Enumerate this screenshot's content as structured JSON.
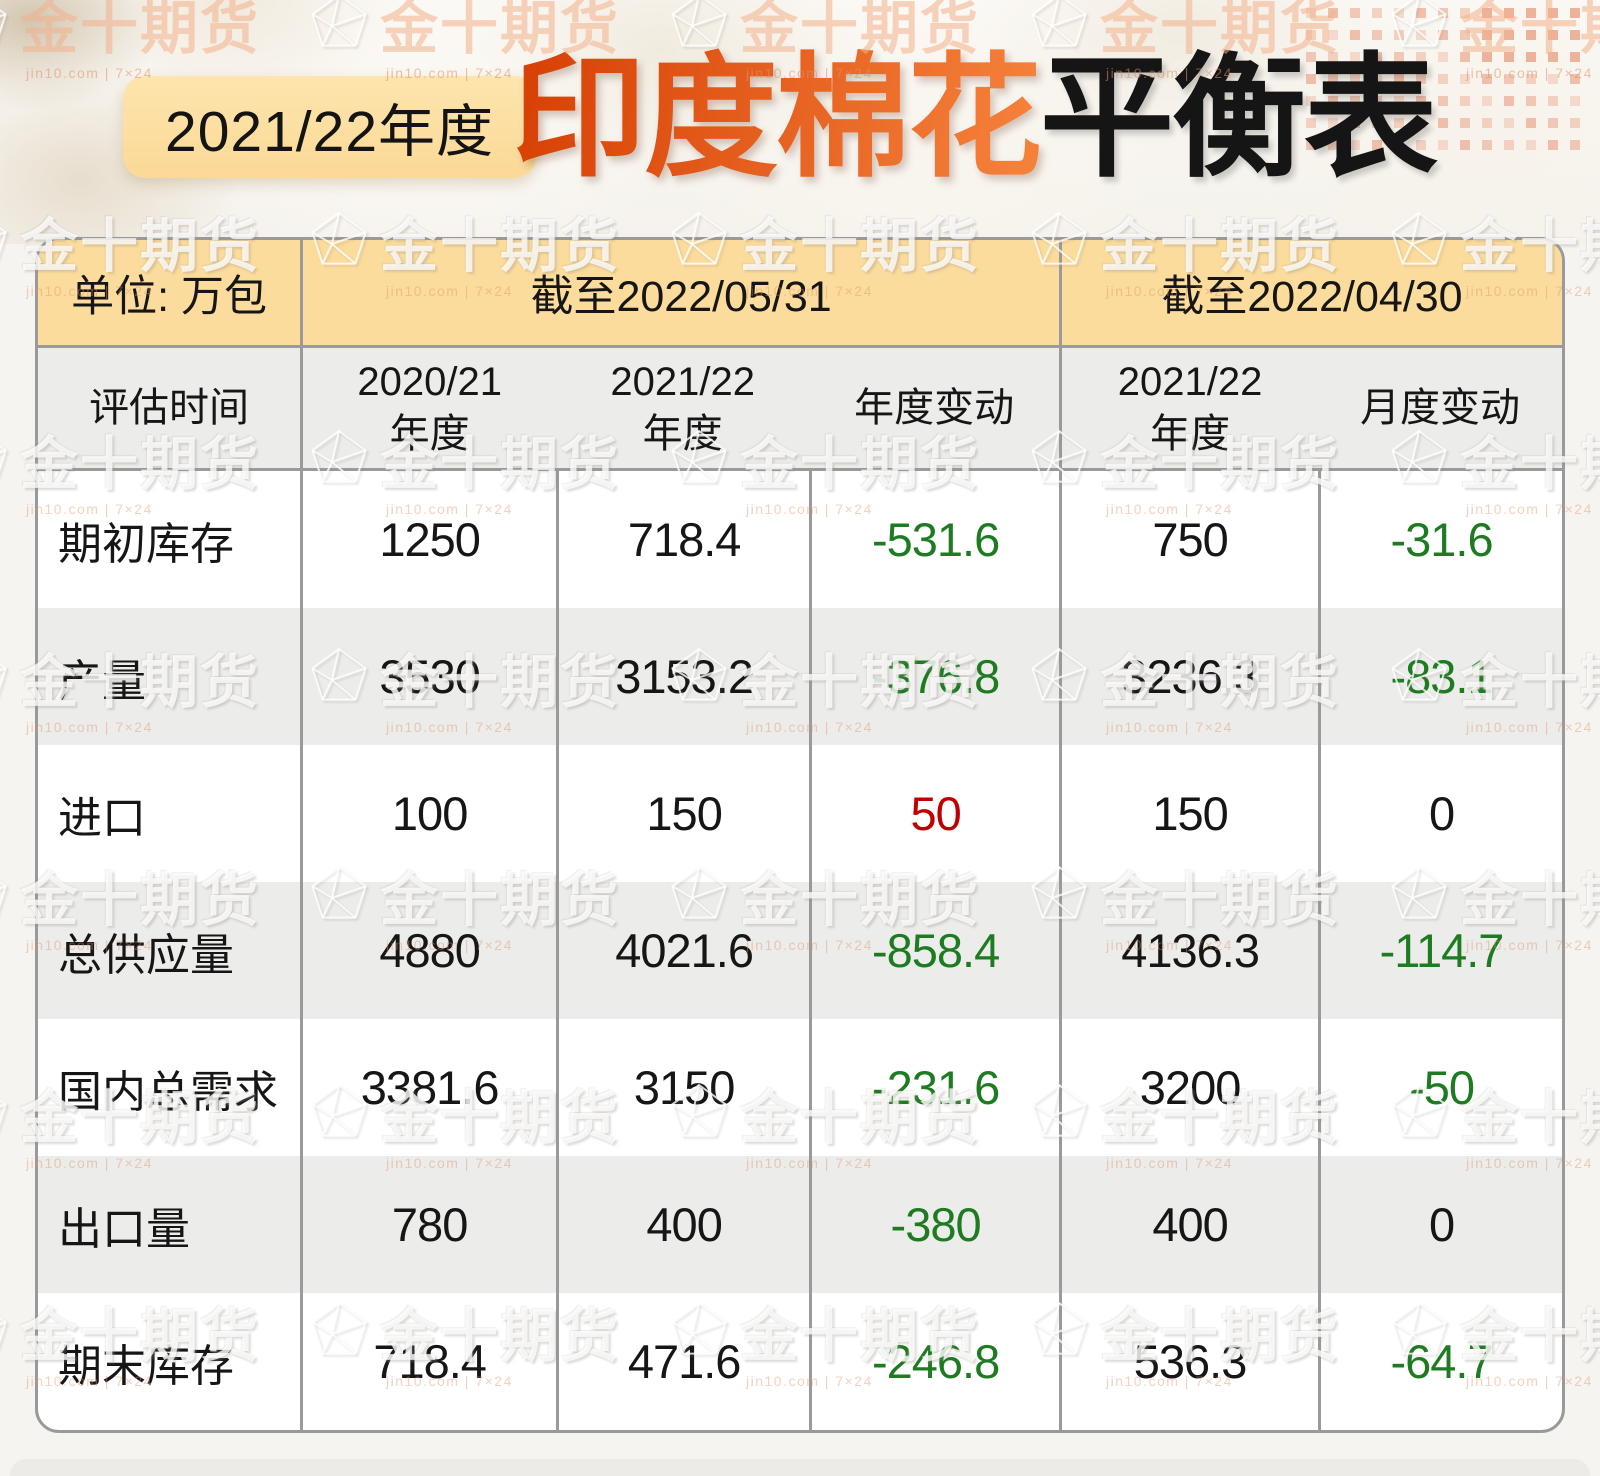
{
  "header": {
    "badge": "2021/22年度",
    "title_orange": "印度棉花",
    "title_black": "平衡表"
  },
  "table": {
    "unit_label": "单位: 万包",
    "group_headers": [
      "截至2022/05/31",
      "截至2022/04/30"
    ],
    "col_headers": [
      "评估时间",
      "2020/21\n年度",
      "2021/22\n年度",
      "年度变动",
      "2021/22\n年度",
      "月度变动"
    ],
    "rows": [
      {
        "label": "期初库存",
        "cells": [
          {
            "t": "1250"
          },
          {
            "t": "718.4"
          },
          {
            "t": "-531.6",
            "c": "green"
          },
          {
            "t": "750"
          },
          {
            "t": "-31.6",
            "c": "green"
          }
        ]
      },
      {
        "label": "产量",
        "cells": [
          {
            "t": "3530"
          },
          {
            "t": "3153.2"
          },
          {
            "t": "-376.8",
            "c": "green"
          },
          {
            "t": "3236.3"
          },
          {
            "t": "-83.1",
            "c": "green"
          }
        ]
      },
      {
        "label": "进口",
        "cells": [
          {
            "t": "100"
          },
          {
            "t": "150"
          },
          {
            "t": "50",
            "c": "red"
          },
          {
            "t": "150"
          },
          {
            "t": "0"
          }
        ]
      },
      {
        "label": "总供应量",
        "cells": [
          {
            "t": "4880"
          },
          {
            "t": "4021.6"
          },
          {
            "t": "-858.4",
            "c": "green"
          },
          {
            "t": "4136.3"
          },
          {
            "t": "-114.7",
            "c": "green"
          }
        ]
      },
      {
        "label": "国内总需求",
        "cells": [
          {
            "t": "3381.6"
          },
          {
            "t": "3150"
          },
          {
            "t": "-231.6",
            "c": "green"
          },
          {
            "t": "3200"
          },
          {
            "t": "-50",
            "c": "green"
          }
        ]
      },
      {
        "label": "出口量",
        "cells": [
          {
            "t": "780"
          },
          {
            "t": "400"
          },
          {
            "t": "-380",
            "c": "green"
          },
          {
            "t": "400"
          },
          {
            "t": "0"
          }
        ]
      },
      {
        "label": "期末库存",
        "cells": [
          {
            "t": "718.4"
          },
          {
            "t": "471.6"
          },
          {
            "t": "-246.8",
            "c": "green"
          },
          {
            "t": "536.3"
          },
          {
            "t": "-64.7",
            "c": "green"
          }
        ]
      }
    ]
  },
  "watermark": {
    "text": "金十期货",
    "subtext": "jin10.com | 7×24"
  },
  "colors": {
    "header_yellow": "#FBDC9C",
    "row_gray": "#ECECEA",
    "border_gray": "#9A9A9A",
    "negative_green": "#1E7B21",
    "positive_red": "#C00000",
    "title_orange": "#E0500E",
    "dot_salmon": "#EDAE95"
  },
  "chart_data": {
    "type": "table",
    "title": "2021/22年度 印度棉花平衡表",
    "unit": "万包",
    "columns": [
      "评估时间",
      "截至2022/05/31 2020/21年度",
      "截至2022/05/31 2021/22年度",
      "截至2022/05/31 年度变动",
      "截至2022/04/30 2021/22年度",
      "截至2022/04/30 月度变动"
    ],
    "rows": [
      [
        "期初库存",
        1250,
        718.4,
        -531.6,
        750,
        -31.6
      ],
      [
        "产量",
        3530,
        3153.2,
        -376.8,
        3236.3,
        -83.1
      ],
      [
        "进口",
        100,
        150,
        50,
        150,
        0
      ],
      [
        "总供应量",
        4880,
        4021.6,
        -858.4,
        4136.3,
        -114.7
      ],
      [
        "国内总需求",
        3381.6,
        3150,
        -231.6,
        3200,
        -50
      ],
      [
        "出口量",
        780,
        400,
        -380,
        400,
        0
      ],
      [
        "期末库存",
        718.4,
        471.6,
        -246.8,
        536.3,
        -64.7
      ]
    ]
  }
}
